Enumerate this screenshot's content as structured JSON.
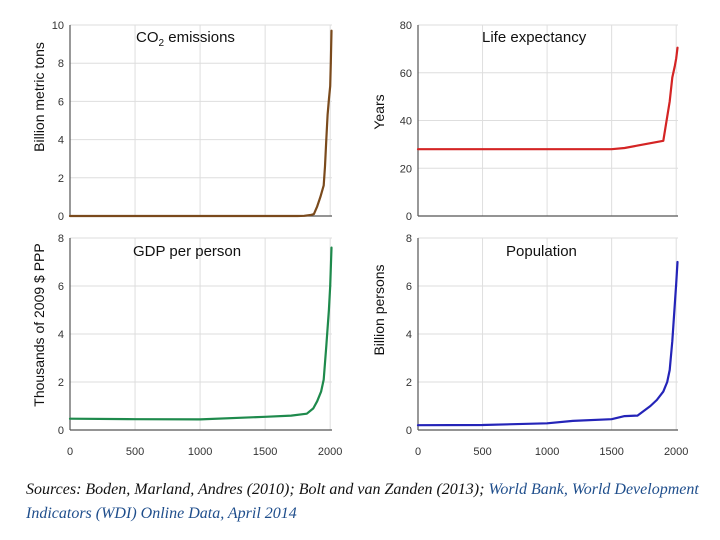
{
  "chart_data": [
    {
      "id": "co2",
      "type": "line",
      "title": "CO",
      "title_sub": "2",
      "title_rest": " emissions",
      "ylabel": "Billion metric tons",
      "xlabel": "",
      "xlim": [
        0,
        2014
      ],
      "ylim": [
        0,
        10
      ],
      "yticks": [
        0,
        2,
        4,
        6,
        8,
        10
      ],
      "xticks": [],
      "color": "#7a4a1c",
      "series": [
        {
          "name": "CO2 emissions",
          "x": [
            0,
            1750,
            1800,
            1850,
            1875,
            1900,
            1925,
            1950,
            1960,
            1970,
            1980,
            1990,
            2000,
            2005,
            2010
          ],
          "y": [
            0,
            0,
            0.01,
            0.05,
            0.1,
            0.5,
            1.0,
            1.6,
            2.6,
            4.0,
            5.3,
            6.1,
            6.8,
            8.0,
            9.7
          ]
        }
      ]
    },
    {
      "id": "life",
      "type": "line",
      "title": "Life expectancy",
      "ylabel": "Years",
      "xlabel": "",
      "xlim": [
        0,
        2014
      ],
      "ylim": [
        0,
        80
      ],
      "yticks": [
        0,
        20,
        40,
        60,
        80
      ],
      "xticks": [],
      "color": "#d42424",
      "series": [
        {
          "name": "Life expectancy",
          "x": [
            0,
            1500,
            1600,
            1700,
            1800,
            1900,
            1950,
            1970,
            1990,
            2000,
            2010
          ],
          "y": [
            28,
            28,
            28.5,
            29.5,
            30.5,
            31.5,
            48,
            58,
            63,
            66,
            70.5
          ]
        }
      ]
    },
    {
      "id": "gdp",
      "type": "line",
      "title": "GDP per person",
      "ylabel": "Thousands of 2009 $ PPP",
      "xlabel": "",
      "xlim": [
        0,
        2014
      ],
      "ylim": [
        0,
        8
      ],
      "yticks": [
        0,
        2,
        4,
        6,
        8
      ],
      "xticks": [
        0,
        500,
        1000,
        1500,
        2000
      ],
      "color": "#1e8a4c",
      "series": [
        {
          "name": "GDP per person",
          "x": [
            0,
            500,
            1000,
            1500,
            1700,
            1820,
            1870,
            1900,
            1930,
            1950,
            1970,
            1990,
            2000,
            2010
          ],
          "y": [
            0.47,
            0.45,
            0.44,
            0.55,
            0.6,
            0.68,
            0.9,
            1.2,
            1.6,
            2.1,
            3.5,
            5.0,
            6.0,
            7.6
          ]
        }
      ]
    },
    {
      "id": "pop",
      "type": "line",
      "title": "Population",
      "ylabel": "Billion persons",
      "xlabel": "",
      "xlim": [
        0,
        2014
      ],
      "ylim": [
        0,
        8
      ],
      "yticks": [
        0,
        2,
        4,
        6,
        8
      ],
      "xticks": [
        0,
        500,
        1000,
        1500,
        2000
      ],
      "color": "#2424b8",
      "series": [
        {
          "name": "Population",
          "x": [
            0,
            500,
            1000,
            1200,
            1500,
            1600,
            1700,
            1800,
            1850,
            1900,
            1930,
            1950,
            1970,
            1990,
            2000,
            2010
          ],
          "y": [
            0.2,
            0.21,
            0.28,
            0.38,
            0.45,
            0.58,
            0.6,
            1.0,
            1.25,
            1.6,
            2.0,
            2.5,
            3.7,
            5.3,
            6.1,
            7.0
          ]
        }
      ]
    }
  ],
  "caption": {
    "text": "Sources: Boden, Marland, Andres (2010); Bolt and van Zanden (2013); ",
    "link_text": "World Bank, World Development Indicators (WDI) Online Data, April 2014"
  }
}
